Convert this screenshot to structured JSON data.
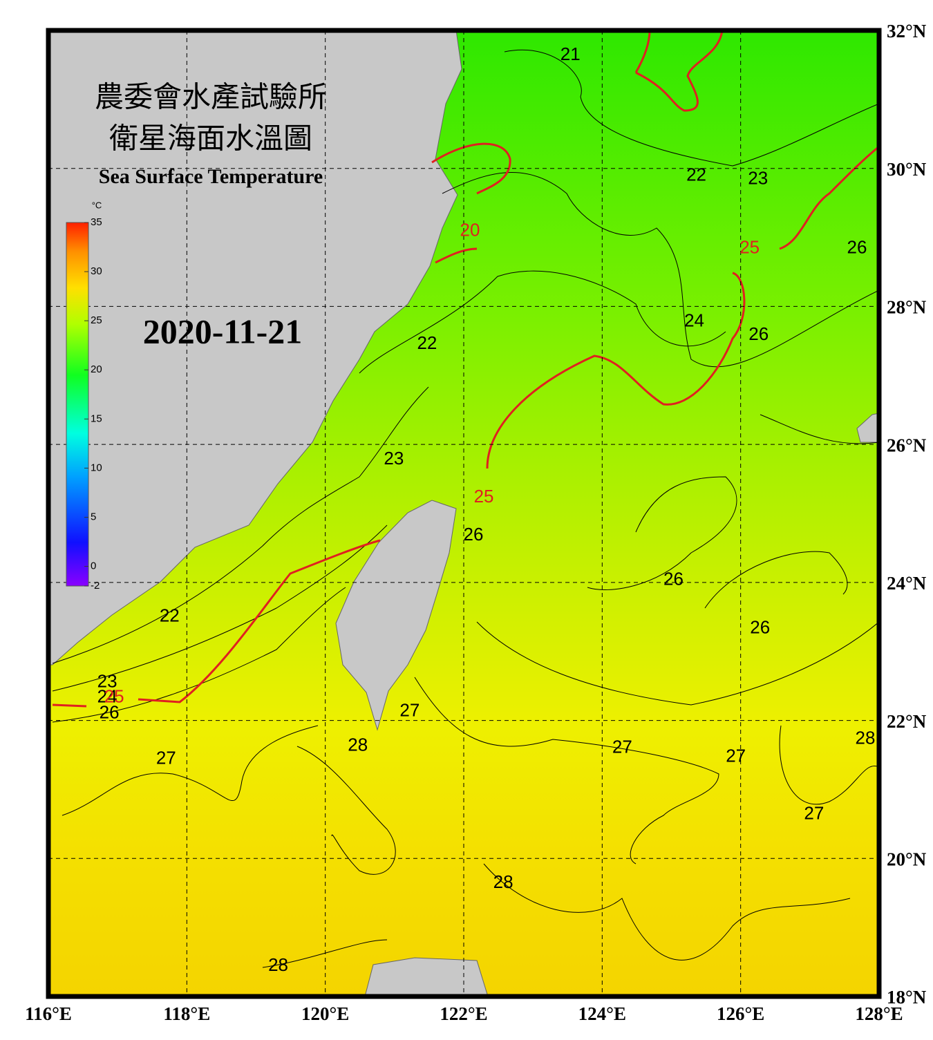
{
  "title_zh_1": "農委會水產試驗所",
  "title_zh_2": "衛星海面水溫圖",
  "title_en": "Sea Surface Temperature",
  "date": "2020-11-21",
  "colorbar": {
    "unit": "°C",
    "range": [
      -2,
      35
    ],
    "ticks": [
      35,
      30,
      25,
      20,
      15,
      10,
      5,
      0,
      -2
    ]
  },
  "lon_range": [
    116,
    128
  ],
  "lat_range": [
    18,
    32
  ],
  "lon_ticks": [
    {
      "value": 116,
      "label": "116°E"
    },
    {
      "value": 118,
      "label": "118°E"
    },
    {
      "value": 120,
      "label": "120°E"
    },
    {
      "value": 122,
      "label": "122°E"
    },
    {
      "value": 124,
      "label": "124°E"
    },
    {
      "value": 126,
      "label": "126°E"
    },
    {
      "value": 128,
      "label": "128°E"
    }
  ],
  "lat_ticks": [
    {
      "value": 18,
      "label": "18°N"
    },
    {
      "value": 20,
      "label": "20°N"
    },
    {
      "value": 22,
      "label": "22°N"
    },
    {
      "value": 24,
      "label": "24°N"
    },
    {
      "value": 26,
      "label": "26°N"
    },
    {
      "value": 28,
      "label": "28°N"
    },
    {
      "value": 30,
      "label": "30°N"
    },
    {
      "value": 32,
      "label": "32°N"
    }
  ],
  "contour_labels": [
    {
      "value": 21,
      "lon": 123.54,
      "lat": 31.64,
      "color": "#000000"
    },
    {
      "value": 22,
      "lon": 125.36,
      "lat": 29.89,
      "color": "#000000"
    },
    {
      "value": 23,
      "lon": 126.25,
      "lat": 29.84,
      "color": "#000000"
    },
    {
      "value": 25,
      "lon": 126.13,
      "lat": 28.84,
      "color": "#e02020"
    },
    {
      "value": 26,
      "lon": 127.68,
      "lat": 28.84,
      "color": "#000000"
    },
    {
      "value": 24,
      "lon": 125.33,
      "lat": 27.78,
      "color": "#000000"
    },
    {
      "value": 26,
      "lon": 126.26,
      "lat": 27.58,
      "color": "#000000"
    },
    {
      "value": 22,
      "lon": 121.47,
      "lat": 27.45,
      "color": "#000000"
    },
    {
      "value": 20,
      "lon": 122.09,
      "lat": 29.09,
      "color": "#e02020"
    },
    {
      "value": 23,
      "lon": 120.99,
      "lat": 25.78,
      "color": "#000000"
    },
    {
      "value": 25,
      "lon": 122.29,
      "lat": 25.23,
      "color": "#e02020"
    },
    {
      "value": 26,
      "lon": 122.14,
      "lat": 24.68,
      "color": "#000000"
    },
    {
      "value": 26,
      "lon": 125.03,
      "lat": 24.03,
      "color": "#000000"
    },
    {
      "value": 26,
      "lon": 126.28,
      "lat": 23.33,
      "color": "#000000"
    },
    {
      "value": 22,
      "lon": 117.75,
      "lat": 23.5,
      "color": "#000000"
    },
    {
      "value": 23,
      "lon": 116.85,
      "lat": 22.55,
      "color": "#000000"
    },
    {
      "value": 24,
      "lon": 116.85,
      "lat": 22.33,
      "color": "#000000"
    },
    {
      "value": 25,
      "lon": 116.95,
      "lat": 22.33,
      "color": "#e02020"
    },
    {
      "value": 26,
      "lon": 116.88,
      "lat": 22.1,
      "color": "#000000"
    },
    {
      "value": 27,
      "lon": 117.7,
      "lat": 21.44,
      "color": "#000000"
    },
    {
      "value": 28,
      "lon": 120.47,
      "lat": 21.63,
      "color": "#000000"
    },
    {
      "value": 27,
      "lon": 121.22,
      "lat": 22.13,
      "color": "#000000"
    },
    {
      "value": 27,
      "lon": 124.29,
      "lat": 21.6,
      "color": "#000000"
    },
    {
      "value": 27,
      "lon": 125.93,
      "lat": 21.47,
      "color": "#000000"
    },
    {
      "value": 27,
      "lon": 127.06,
      "lat": 20.64,
      "color": "#000000"
    },
    {
      "value": 28,
      "lon": 127.8,
      "lat": 21.73,
      "color": "#000000"
    },
    {
      "value": 28,
      "lon": 122.57,
      "lat": 19.64,
      "color": "#000000"
    },
    {
      "value": 28,
      "lon": 119.32,
      "lat": 18.44,
      "color": "#000000"
    }
  ]
}
